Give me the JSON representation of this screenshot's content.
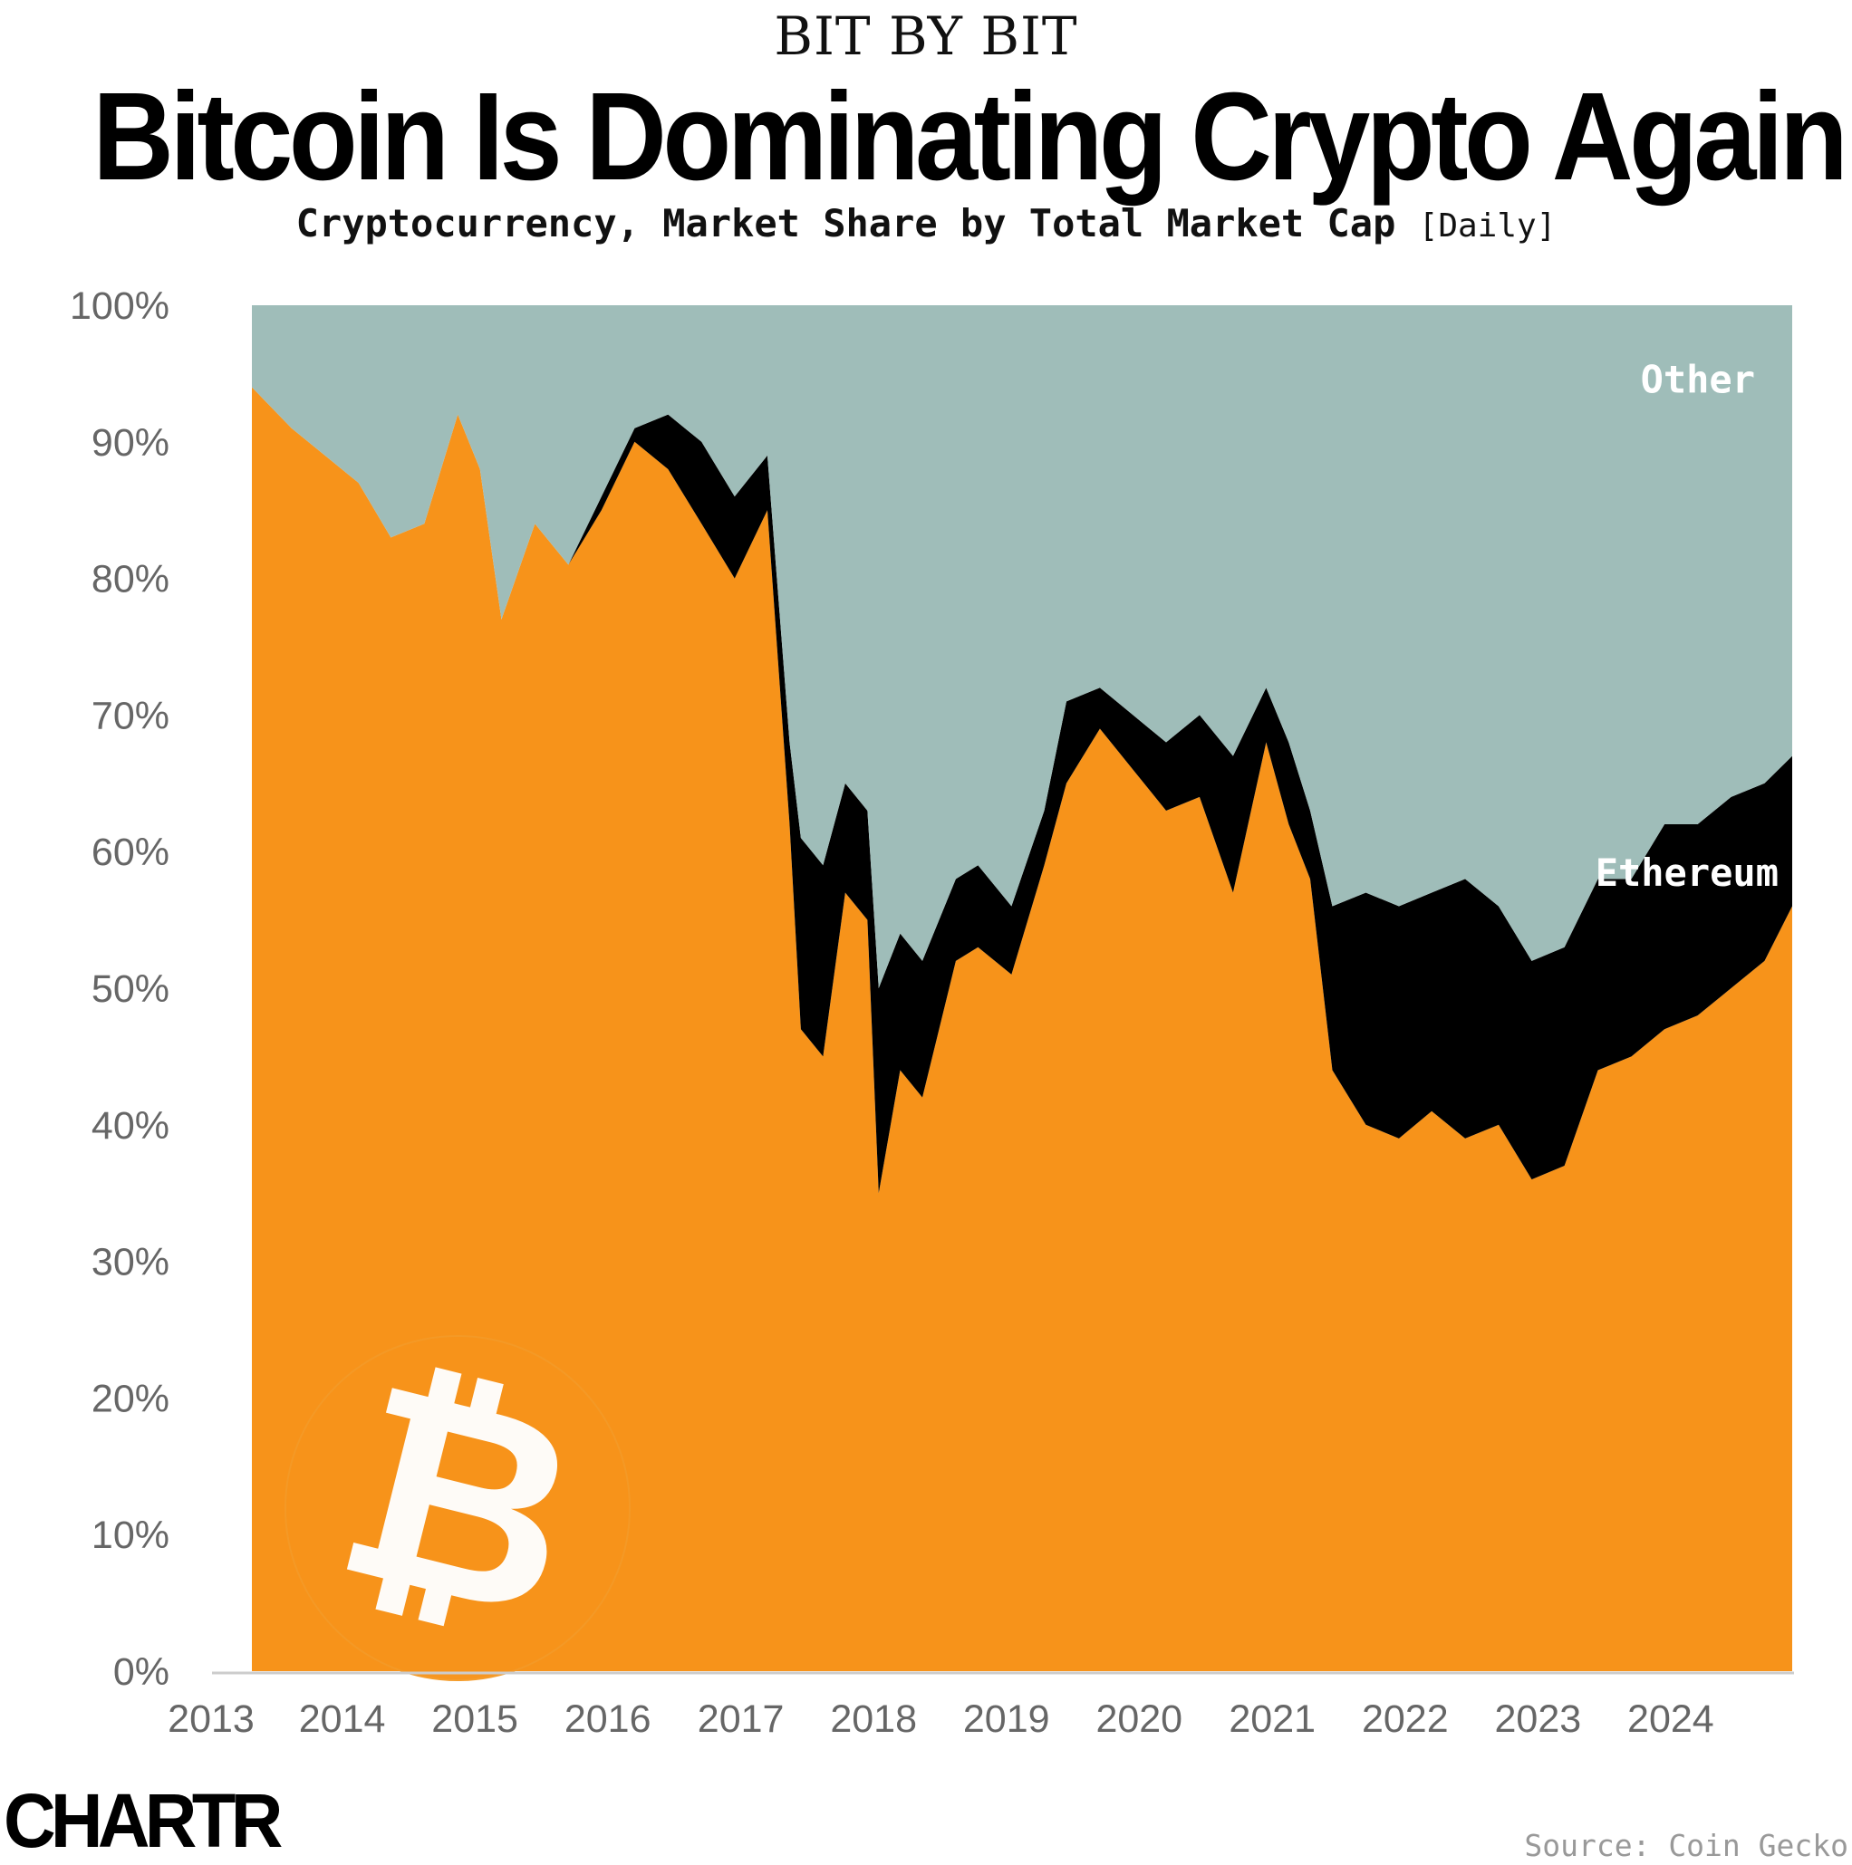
{
  "header": {
    "kicker": "BIT BY BIT",
    "title": "Bitcoin Is Dominating Crypto Again",
    "subtitle": "Cryptocurrency, Market Share by Total Market Cap",
    "frequency": "[Daily]"
  },
  "footer": {
    "logo": "CHARTR",
    "source": "Source: Coin Gecko"
  },
  "colors": {
    "bitcoin": "#F7931A",
    "ethereum": "#000000",
    "other": "#9FBDB9",
    "axis_text": "#666666"
  },
  "icons": {
    "watermark": "bitcoin-logo-icon"
  },
  "chart_data": {
    "type": "area",
    "stacked": true,
    "frequency": "daily",
    "x_tick_labels": [
      "2013",
      "2014",
      "2015",
      "2016",
      "2017",
      "2018",
      "2019",
      "2020",
      "2021",
      "2022",
      "2023",
      "2024"
    ],
    "y_tick_labels": [
      "0%",
      "10%",
      "20%",
      "30%",
      "40%",
      "50%",
      "60%",
      "70%",
      "80%",
      "90%",
      "100%"
    ],
    "xlim": [
      "2013-04-28",
      "2024-11-30"
    ],
    "ylim": [
      0,
      100
    ],
    "grid": false,
    "legend": "none (inline area labels)",
    "area_labels": {
      "other": "Other",
      "ethereum": "Ethereum"
    },
    "x": [
      "2013-05",
      "2013-08",
      "2013-11",
      "2014-02",
      "2014-05",
      "2014-08",
      "2014-11",
      "2015-01",
      "2015-03",
      "2015-06",
      "2015-09",
      "2015-12",
      "2016-03",
      "2016-06",
      "2016-09",
      "2016-12",
      "2017-03",
      "2017-05",
      "2017-06",
      "2017-08",
      "2017-10",
      "2017-12",
      "2018-01",
      "2018-03",
      "2018-05",
      "2018-08",
      "2018-10",
      "2019-01",
      "2019-04",
      "2019-06",
      "2019-09",
      "2019-12",
      "2020-03",
      "2020-06",
      "2020-09",
      "2020-12",
      "2021-02",
      "2021-04",
      "2021-06",
      "2021-09",
      "2021-12",
      "2022-03",
      "2022-06",
      "2022-09",
      "2022-12",
      "2023-03",
      "2023-06",
      "2023-09",
      "2023-12",
      "2024-03",
      "2024-06",
      "2024-09",
      "2024-11"
    ],
    "series": [
      {
        "key": "bitcoin",
        "values": [
          94,
          91,
          89,
          87,
          83,
          84,
          92,
          88,
          77,
          84,
          81,
          85,
          90,
          88,
          84,
          80,
          85,
          62,
          47,
          45,
          57,
          55,
          35,
          44,
          42,
          52,
          53,
          51,
          59,
          65,
          69,
          66,
          63,
          64,
          57,
          68,
          62,
          58,
          44,
          40,
          39,
          41,
          39,
          40,
          36,
          37,
          44,
          45,
          47,
          48,
          50,
          52,
          56
        ]
      },
      {
        "key": "ethereum",
        "values": [
          0,
          0,
          0,
          0,
          0,
          0,
          0,
          0,
          0,
          0,
          0,
          1,
          1,
          4,
          6,
          6,
          4,
          6,
          14,
          14,
          8,
          8,
          15,
          10,
          10,
          6,
          6,
          5,
          4,
          6,
          3,
          4,
          5,
          6,
          10,
          4,
          6,
          5,
          12,
          17,
          17,
          16,
          19,
          16,
          16,
          16,
          14,
          13,
          15,
          14,
          14,
          13,
          11
        ]
      },
      {
        "key": "other",
        "values": [
          6,
          9,
          11,
          13,
          17,
          16,
          8,
          12,
          23,
          16,
          19,
          14,
          9,
          8,
          10,
          14,
          11,
          32,
          39,
          41,
          35,
          37,
          50,
          46,
          48,
          42,
          41,
          44,
          37,
          29,
          28,
          30,
          32,
          30,
          33,
          28,
          32,
          37,
          44,
          43,
          44,
          43,
          42,
          44,
          48,
          47,
          42,
          42,
          38,
          38,
          36,
          35,
          33
        ]
      }
    ]
  }
}
